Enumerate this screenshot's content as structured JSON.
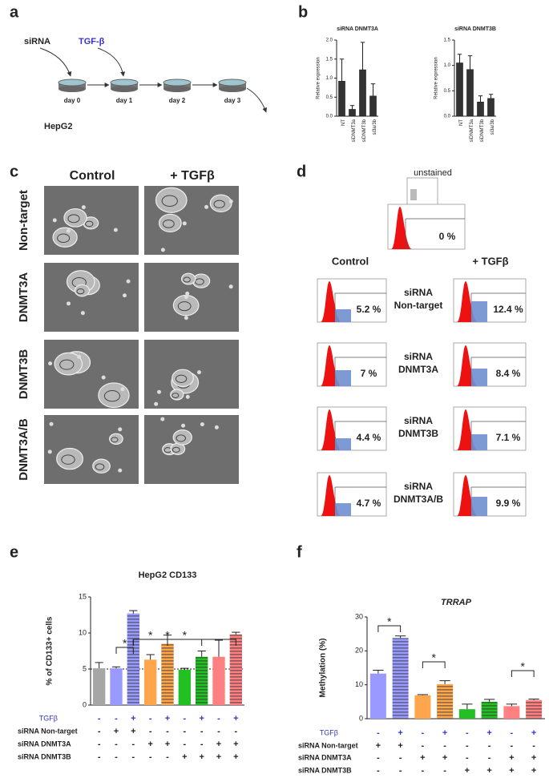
{
  "panel_labels": [
    "a",
    "b",
    "c",
    "d",
    "e",
    "f"
  ],
  "panel_a": {
    "sirna": "siRNA",
    "tgf": "TGF-β",
    "days": [
      "day 0",
      "day 1",
      "day 2",
      "day 3"
    ],
    "cell_line": "HepG2"
  },
  "chart_data": [
    {
      "type": "bar",
      "title": "siRNA DNMT3A",
      "y_label": "Relative expression",
      "categories": [
        "NT",
        "siDNMT3a",
        "siDNMT3b",
        "si3a/3b"
      ],
      "values": [
        0.92,
        0.18,
        1.22,
        0.53
      ],
      "errors": [
        0.58,
        0.1,
        0.72,
        0.32
      ],
      "color": "#333333",
      "ylim": [
        0,
        2
      ],
      "yticks": [
        {
          "value": 0,
          "label": "0.0"
        },
        0.5,
        {
          "value": 1,
          "label": "1.0"
        },
        1.5,
        {
          "value": 2,
          "label": "2.0"
        }
      ]
    },
    {
      "type": "bar",
      "title": "siRNA DNMT3B",
      "y_label": "Relative expression",
      "categories": [
        "NT",
        "siDNMT3a",
        "siDNMT3b",
        "si3a/3b"
      ],
      "values": [
        1.05,
        0.92,
        0.28,
        0.35
      ],
      "errors": [
        0.17,
        0.27,
        0.12,
        0.08
      ],
      "color": "#333333",
      "ylim": [
        0,
        1.5
      ],
      "yticks": [
        {
          "value": 0,
          "label": "0.0"
        },
        0.5,
        {
          "value": 1,
          "label": "1.0"
        },
        1.5
      ]
    },
    {
      "type": "bar",
      "title": "HepG2 CD133",
      "y_label": "% of CD133+ cells",
      "values": [
        5.1,
        5.1,
        12.7,
        6.3,
        8.5,
        4.9,
        6.7,
        6.7,
        9.8
      ],
      "errors": [
        0.8,
        0.2,
        0.4,
        0.7,
        1.2,
        0.2,
        0.8,
        2.3,
        0.3
      ],
      "colors": [
        "#a6a6a6",
        "#9999ff",
        "#9999ff",
        "#ffa64d",
        "#ffa64d",
        "#22c022",
        "#22c022",
        "#ff8080",
        "#ff8080"
      ],
      "hatched": [
        false,
        false,
        true,
        false,
        true,
        false,
        true,
        false,
        true
      ],
      "ylim": [
        0,
        15
      ],
      "yticks": [
        0,
        5,
        10,
        15
      ],
      "reference_line": 5,
      "annotations": [
        "*",
        "*",
        "*",
        "*"
      ],
      "conditions": [
        {
          "label": "TGFβ",
          "color": "#3333cc",
          "signs": [
            "-",
            "-",
            "+",
            "-",
            "+",
            "-",
            "+",
            "-",
            "+"
          ]
        },
        {
          "label": "siRNA Non-target",
          "signs": [
            "-",
            "+",
            "+",
            "-",
            "-",
            "-",
            "-",
            "-",
            "-"
          ]
        },
        {
          "label": "siRNA DNMT3A",
          "signs": [
            "-",
            "-",
            "-",
            "+",
            "+",
            "-",
            "-",
            "+",
            "+"
          ]
        },
        {
          "label": "siRNA DNMT3B",
          "signs": [
            "-",
            "-",
            "-",
            "-",
            "-",
            "+",
            "+",
            "+",
            "+"
          ]
        }
      ]
    },
    {
      "type": "bar",
      "title": "TRRAP",
      "y_label": "Methylation (%)",
      "values": [
        13.3,
        23.8,
        6.9,
        10.2,
        2.8,
        5.0,
        3.7,
        5.5
      ],
      "errors": [
        1.0,
        0.6,
        0.2,
        1.0,
        1.5,
        0.7,
        0.6,
        0.3
      ],
      "colors": [
        "#9999ff",
        "#9999ff",
        "#ffa64d",
        "#ffa64d",
        "#22c022",
        "#22c022",
        "#ff8080",
        "#ff8080"
      ],
      "hatched": [
        false,
        true,
        false,
        true,
        false,
        true,
        false,
        true
      ],
      "ylim": [
        0,
        30
      ],
      "yticks": [
        0,
        10,
        20,
        30
      ],
      "annotations": [
        "*",
        "*",
        "*"
      ],
      "conditions": [
        {
          "label": "TGFβ",
          "color": "#3333cc",
          "signs": [
            "-",
            "+",
            "-",
            "+",
            "-",
            "+",
            "-",
            "+"
          ]
        },
        {
          "label": "siRNA Non-target",
          "signs": [
            "+",
            "+",
            "-",
            "-",
            "-",
            "-",
            "-",
            "-"
          ]
        },
        {
          "label": "siRNA DNMT3A",
          "signs": [
            "-",
            "-",
            "+",
            "+",
            "-",
            "-",
            "+",
            "+"
          ]
        },
        {
          "label": "siRNA DNMT3B",
          "signs": [
            "-",
            "-",
            "-",
            "-",
            "+",
            "+",
            "+",
            "+"
          ]
        }
      ]
    }
  ],
  "panel_c": {
    "columns": [
      "Control",
      "+ TGFβ"
    ],
    "rows": [
      "Non-target",
      "DNMT3A",
      "DNMT3B",
      "DNMT3A/B"
    ]
  },
  "panel_d": {
    "unstained": "unstained",
    "unstained_percent": "0 %",
    "columns": [
      "Control",
      "+ TGFβ"
    ],
    "rows": [
      {
        "label": [
          "siRNA",
          "Non-target"
        ],
        "control": "5.2 %",
        "tgf": "12.4 %"
      },
      {
        "label": [
          "siRNA",
          "DNMT3A"
        ],
        "control": "7 %",
        "tgf": "8.4 %"
      },
      {
        "label": [
          "siRNA",
          "DNMT3B"
        ],
        "control": "4.4 %",
        "tgf": "7.1 %"
      },
      {
        "label": [
          "siRNA",
          "DNMT3A/B"
        ],
        "control": "4.7 %",
        "tgf": "9.9 %"
      }
    ]
  }
}
